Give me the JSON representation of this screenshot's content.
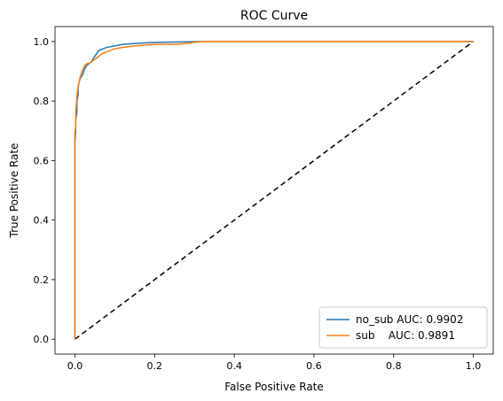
{
  "chart_data": {
    "type": "line",
    "title": "ROC Curve",
    "xlabel": "False Positive Rate",
    "ylabel": "True Positive Rate",
    "xlim": [
      -0.05,
      1.05
    ],
    "ylim": [
      -0.05,
      1.05
    ],
    "xticks": [
      "0.0",
      "0.2",
      "0.4",
      "0.6",
      "0.8",
      "1.0"
    ],
    "yticks": [
      "0.0",
      "0.2",
      "0.4",
      "0.6",
      "0.8",
      "1.0"
    ],
    "grid": false,
    "legend_position": "lower-right",
    "series": [
      {
        "name": "no_sub AUC: 0.9902",
        "color": "#1f77b4",
        "style": "solid",
        "x": [
          0.0,
          0.0,
          0.002,
          0.002,
          0.005,
          0.005,
          0.008,
          0.008,
          0.012,
          0.015,
          0.02,
          0.025,
          0.03,
          0.04,
          0.05,
          0.06,
          0.07,
          0.08,
          0.1,
          0.12,
          0.15,
          0.2,
          0.25,
          0.3,
          0.32,
          0.5,
          0.8,
          1.0
        ],
        "y": [
          0.0,
          0.66,
          0.7,
          0.74,
          0.76,
          0.8,
          0.82,
          0.85,
          0.87,
          0.88,
          0.89,
          0.91,
          0.92,
          0.93,
          0.95,
          0.97,
          0.975,
          0.98,
          0.985,
          0.99,
          0.993,
          0.997,
          0.998,
          0.999,
          1.0,
          1.0,
          1.0,
          1.0
        ]
      },
      {
        "name": "sub    AUC: 0.9891",
        "color": "#ff7f0e",
        "style": "solid",
        "x": [
          0.0,
          0.0,
          0.002,
          0.002,
          0.004,
          0.006,
          0.01,
          0.013,
          0.018,
          0.025,
          0.03,
          0.04,
          0.05,
          0.06,
          0.07,
          0.08,
          0.1,
          0.12,
          0.15,
          0.2,
          0.25,
          0.28,
          0.3,
          0.32,
          0.5,
          0.8,
          1.0
        ],
        "y": [
          0.0,
          0.69,
          0.72,
          0.76,
          0.8,
          0.83,
          0.86,
          0.88,
          0.9,
          0.92,
          0.925,
          0.93,
          0.94,
          0.95,
          0.96,
          0.965,
          0.975,
          0.98,
          0.985,
          0.99,
          0.99,
          0.993,
          0.997,
          1.0,
          1.0,
          1.0,
          1.0
        ]
      },
      {
        "name": "",
        "color": "#000000",
        "style": "dashed",
        "x": [
          0.0,
          1.0
        ],
        "y": [
          0.0,
          1.0
        ]
      }
    ]
  }
}
